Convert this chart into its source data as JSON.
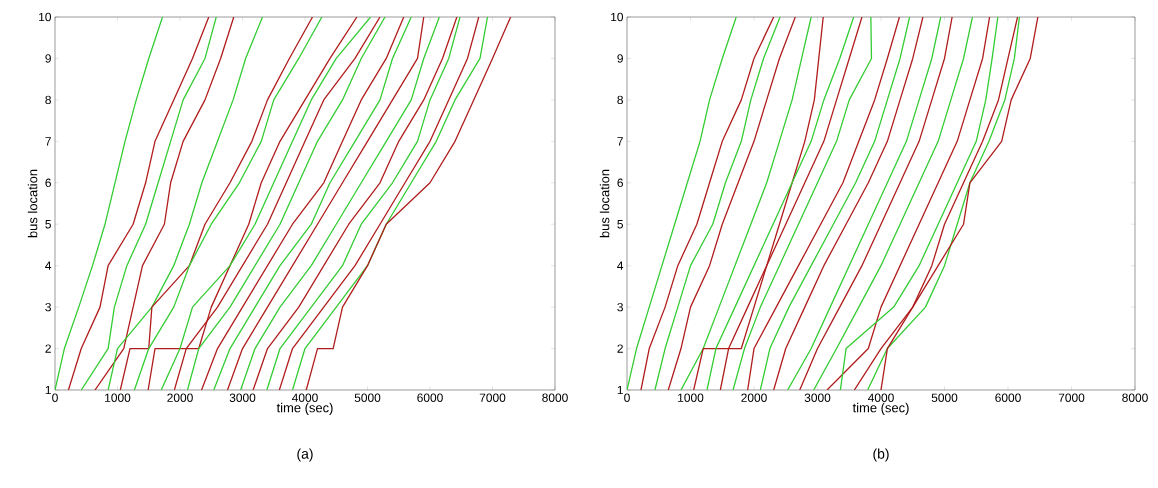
{
  "chart_data": [
    {
      "type": "line",
      "xlabel": "time (sec)",
      "ylabel": "bus location",
      "annotations": [
        "(a)"
      ],
      "xlim": [
        0,
        8000
      ],
      "ylim": [
        1,
        10
      ],
      "xticks": [
        0,
        1000,
        2000,
        3000,
        4000,
        5000,
        6000,
        7000,
        8000
      ],
      "yticks": [
        1,
        2,
        3,
        4,
        5,
        6,
        7,
        8,
        9,
        10
      ],
      "series": [
        {
          "color": "#33cc33",
          "x": [
            0,
            150,
            380,
            600,
            800,
            960,
            1120,
            1300,
            1500,
            1720
          ],
          "values": [
            1,
            2,
            3,
            4,
            5,
            6,
            7,
            8,
            9,
            10
          ]
        },
        {
          "color": "#b01c1c",
          "x": [
            215,
            420,
            720,
            850,
            1250,
            1450,
            1600,
            1900,
            2200,
            2460
          ],
          "values": [
            1,
            2,
            3,
            4,
            5,
            6,
            7,
            8,
            9,
            10
          ]
        },
        {
          "color": "#33cc33",
          "x": [
            420,
            850,
            950,
            1150,
            1450,
            1650,
            1850,
            2050,
            2400,
            2580
          ],
          "values": [
            1,
            2,
            3,
            4,
            5,
            6,
            7,
            8,
            9,
            10
          ]
        },
        {
          "color": "#b01c1c",
          "x": [
            640,
            1100,
            1250,
            1400,
            1750,
            1850,
            2050,
            2400,
            2650,
            2860
          ],
          "values": [
            1,
            2,
            3,
            4,
            5,
            6,
            7,
            8,
            9,
            10
          ]
        },
        {
          "color": "#33cc33",
          "x": [
            850,
            1000,
            1550,
            1900,
            2150,
            2350,
            2600,
            2850,
            3050,
            3320
          ],
          "values": [
            1,
            2,
            3,
            4,
            5,
            6,
            7,
            8,
            9,
            10
          ]
        },
        {
          "color": "#b01c1c",
          "x": [
            1045,
            1200,
            1500,
            1550,
            2150,
            2400,
            2800,
            3150,
            3400,
            3750,
            4120
          ],
          "values": [
            1,
            2,
            2,
            3,
            4,
            5,
            6,
            7,
            8,
            9,
            10
          ]
        },
        {
          "color": "#33cc33",
          "x": [
            1270,
            1500,
            1900,
            2150,
            2500,
            2950,
            3300,
            3500,
            3900,
            4270
          ],
          "values": [
            1,
            2,
            3,
            4,
            5,
            6,
            7,
            8,
            9,
            10
          ]
        },
        {
          "color": "#b01c1c",
          "x": [
            1490,
            1600,
            2300,
            2500,
            2800,
            3100,
            3300,
            3600,
            4000,
            4400,
            4830
          ],
          "values": [
            1,
            2,
            2,
            3,
            4,
            5,
            6,
            7,
            8,
            9,
            10
          ]
        },
        {
          "color": "#33cc33",
          "x": [
            1700,
            2000,
            2200,
            2800,
            3200,
            3500,
            3800,
            4100,
            4500,
            5050
          ],
          "values": [
            1,
            2,
            3,
            4,
            5,
            6,
            7,
            8,
            9,
            10
          ]
        },
        {
          "color": "#b01c1c",
          "x": [
            1910,
            2100,
            2600,
            3000,
            3400,
            3700,
            4000,
            4300,
            4800,
            5200
          ],
          "values": [
            1,
            2,
            3,
            4,
            5,
            6,
            7,
            8,
            9,
            10
          ]
        },
        {
          "color": "#33cc33",
          "x": [
            2120,
            2300,
            2800,
            3200,
            3600,
            3900,
            4200,
            4600,
            4900,
            5280
          ],
          "values": [
            1,
            2,
            3,
            4,
            5,
            6,
            7,
            8,
            9,
            10
          ]
        },
        {
          "color": "#b01c1c",
          "x": [
            2345,
            2600,
            3000,
            3400,
            3800,
            4300,
            4600,
            4900,
            5300,
            5580
          ],
          "values": [
            1,
            2,
            3,
            4,
            5,
            6,
            7,
            8,
            9,
            10
          ]
        },
        {
          "color": "#33cc33",
          "x": [
            2540,
            2800,
            3200,
            3600,
            4100,
            4400,
            4800,
            5200,
            5400,
            5700
          ],
          "values": [
            1,
            2,
            3,
            4,
            5,
            6,
            7,
            8,
            9,
            10
          ]
        },
        {
          "color": "#b01c1c",
          "x": [
            2760,
            3000,
            3400,
            3800,
            4200,
            4600,
            5000,
            5400,
            5800,
            5900
          ],
          "values": [
            1,
            2,
            3,
            4,
            5,
            6,
            7,
            8,
            9,
            10
          ]
        },
        {
          "color": "#33cc33",
          "x": [
            2970,
            3200,
            3600,
            4100,
            4500,
            4900,
            5300,
            5700,
            5900,
            6150
          ],
          "values": [
            1,
            2,
            3,
            4,
            5,
            6,
            7,
            8,
            9,
            10
          ]
        },
        {
          "color": "#b01c1c",
          "x": [
            3170,
            3400,
            3900,
            4300,
            4700,
            5200,
            5500,
            5900,
            6200,
            6430
          ],
          "values": [
            1,
            2,
            3,
            4,
            5,
            6,
            7,
            8,
            9,
            10
          ]
        },
        {
          "color": "#33cc33",
          "x": [
            3390,
            3600,
            4100,
            4600,
            4900,
            5400,
            5800,
            6000,
            6300,
            6480
          ],
          "values": [
            1,
            2,
            3,
            4,
            5,
            6,
            7,
            8,
            9,
            10
          ]
        },
        {
          "color": "#b01c1c",
          "x": [
            3590,
            3800,
            4300,
            4800,
            5200,
            5600,
            6000,
            6300,
            6600,
            6780
          ],
          "values": [
            1,
            2,
            3,
            4,
            5,
            6,
            7,
            8,
            9,
            10
          ]
        },
        {
          "color": "#33cc33",
          "x": [
            3800,
            4000,
            4500,
            5000,
            5300,
            5700,
            6100,
            6400,
            6800,
            6920
          ],
          "values": [
            1,
            2,
            3,
            4,
            5,
            6,
            7,
            8,
            9,
            10
          ]
        },
        {
          "color": "#b01c1c",
          "x": [
            4020,
            4200,
            4450,
            4600,
            5000,
            5300,
            6000,
            6400,
            6700,
            7000,
            7290
          ],
          "values": [
            1,
            2,
            2,
            3,
            4,
            5,
            6,
            7,
            8,
            9,
            10
          ]
        }
      ]
    },
    {
      "type": "line",
      "xlabel": "time (sec)",
      "ylabel": "bus location",
      "annotations": [
        "(b)"
      ],
      "xlim": [
        0,
        8000
      ],
      "ylim": [
        1,
        10
      ],
      "xticks": [
        0,
        1000,
        2000,
        3000,
        4000,
        5000,
        6000,
        7000,
        8000
      ],
      "yticks": [
        1,
        2,
        3,
        4,
        5,
        6,
        7,
        8,
        9,
        10
      ],
      "series": [
        {
          "color": "#33cc33",
          "x": [
            0,
            150,
            350,
            550,
            750,
            950,
            1150,
            1300,
            1500,
            1720
          ],
          "values": [
            1,
            2,
            3,
            4,
            5,
            6,
            7,
            8,
            9,
            10
          ]
        },
        {
          "color": "#b01c1c",
          "x": [
            220,
            350,
            600,
            800,
            1100,
            1300,
            1500,
            1800,
            2000,
            2310
          ],
          "values": [
            1,
            2,
            3,
            4,
            5,
            6,
            7,
            8,
            9,
            10
          ]
        },
        {
          "color": "#33cc33",
          "x": [
            440,
            600,
            800,
            1000,
            1350,
            1550,
            1800,
            1950,
            2150,
            2410
          ],
          "values": [
            1,
            2,
            3,
            4,
            5,
            6,
            7,
            8,
            9,
            10
          ]
        },
        {
          "color": "#b01c1c",
          "x": [
            650,
            850,
            1000,
            1300,
            1500,
            1750,
            2000,
            2200,
            2400,
            2650
          ],
          "values": [
            1,
            2,
            3,
            4,
            5,
            6,
            7,
            8,
            9,
            10
          ]
        },
        {
          "color": "#33cc33",
          "x": [
            850,
            1200,
            1450,
            1700,
            1950,
            2200,
            2400,
            2600,
            2750,
            2900
          ],
          "values": [
            1,
            2,
            3,
            4,
            5,
            6,
            7,
            8,
            9,
            10
          ]
        },
        {
          "color": "#b01c1c",
          "x": [
            1050,
            1200,
            1800,
            2000,
            2200,
            2400,
            2600,
            2800,
            2950,
            3090
          ],
          "values": [
            1,
            2,
            2,
            3,
            4,
            5,
            6,
            7,
            8,
            10
          ]
        },
        {
          "color": "#33cc33",
          "x": [
            1260,
            1400,
            1700,
            2000,
            2300,
            2600,
            2900,
            3100,
            3350,
            3570
          ],
          "values": [
            1,
            2,
            3,
            4,
            5,
            6,
            7,
            8,
            9,
            10
          ]
        },
        {
          "color": "#b01c1c",
          "x": [
            1470,
            1600,
            1900,
            2200,
            2500,
            2800,
            3100,
            3300,
            3500,
            3700
          ],
          "values": [
            1,
            2,
            3,
            4,
            5,
            6,
            7,
            8,
            9,
            10
          ]
        },
        {
          "color": "#33cc33",
          "x": [
            1670,
            1850,
            2100,
            2400,
            2700,
            3000,
            3300,
            3500,
            3850,
            3840
          ],
          "values": [
            1,
            2,
            3,
            4,
            5,
            6,
            7,
            8,
            9,
            10
          ]
        },
        {
          "color": "#b01c1c",
          "x": [
            1900,
            2000,
            2350,
            2700,
            3050,
            3400,
            3650,
            3900,
            4100,
            4290
          ],
          "values": [
            1,
            2,
            3,
            4,
            5,
            6,
            7,
            8,
            9,
            10
          ]
        },
        {
          "color": "#33cc33",
          "x": [
            2100,
            2250,
            2550,
            2900,
            3250,
            3600,
            3900,
            4100,
            4300,
            4450
          ],
          "values": [
            1,
            2,
            3,
            4,
            5,
            6,
            7,
            8,
            9,
            10
          ]
        },
        {
          "color": "#b01c1c",
          "x": [
            2310,
            2500,
            2800,
            3100,
            3450,
            3800,
            4100,
            4300,
            4500,
            4660
          ],
          "values": [
            1,
            2,
            3,
            4,
            5,
            6,
            7,
            8,
            9,
            10
          ]
        },
        {
          "color": "#33cc33",
          "x": [
            2530,
            2900,
            3200,
            3500,
            3800,
            4100,
            4400,
            4600,
            4800,
            4940
          ],
          "values": [
            1,
            2,
            3,
            4,
            5,
            6,
            7,
            8,
            9,
            10
          ]
        },
        {
          "color": "#b01c1c",
          "x": [
            2720,
            3000,
            3350,
            3700,
            4000,
            4300,
            4600,
            4800,
            5000,
            5120
          ],
          "values": [
            1,
            2,
            3,
            4,
            5,
            6,
            7,
            8,
            9,
            10
          ]
        },
        {
          "color": "#33cc33",
          "x": [
            2940,
            3300,
            3650,
            4000,
            4300,
            4600,
            4900,
            5100,
            5300,
            5440
          ],
          "values": [
            1,
            2,
            3,
            4,
            5,
            6,
            7,
            8,
            9,
            10
          ]
        },
        {
          "color": "#b01c1c",
          "x": [
            3150,
            3800,
            4000,
            4300,
            4600,
            4900,
            5200,
            5400,
            5600,
            5710
          ],
          "values": [
            1,
            2,
            3,
            4,
            5,
            6,
            7,
            8,
            9,
            10
          ]
        },
        {
          "color": "#33cc33",
          "x": [
            3360,
            3450,
            4200,
            4600,
            4900,
            5200,
            5500,
            5650,
            5750,
            5840
          ],
          "values": [
            1,
            2,
            3,
            4,
            5,
            6,
            7,
            8,
            9,
            10
          ]
        },
        {
          "color": "#b01c1c",
          "x": [
            3580,
            4000,
            4500,
            4800,
            5000,
            5300,
            5600,
            5850,
            6000,
            6150
          ],
          "values": [
            1,
            2,
            3,
            4,
            5,
            6,
            7,
            8,
            9,
            10
          ]
        },
        {
          "color": "#33cc33",
          "x": [
            3790,
            4100,
            4700,
            5000,
            5200,
            5400,
            5700,
            5950,
            6100,
            6180
          ],
          "values": [
            1,
            2,
            3,
            4,
            5,
            6,
            7,
            8,
            9,
            10
          ]
        },
        {
          "color": "#b01c1c",
          "x": [
            4000,
            4100,
            4500,
            4900,
            5300,
            5400,
            5900,
            6050,
            6350,
            6470
          ],
          "values": [
            1,
            2,
            3,
            4,
            5,
            6,
            7,
            8,
            9,
            10
          ]
        }
      ]
    }
  ]
}
